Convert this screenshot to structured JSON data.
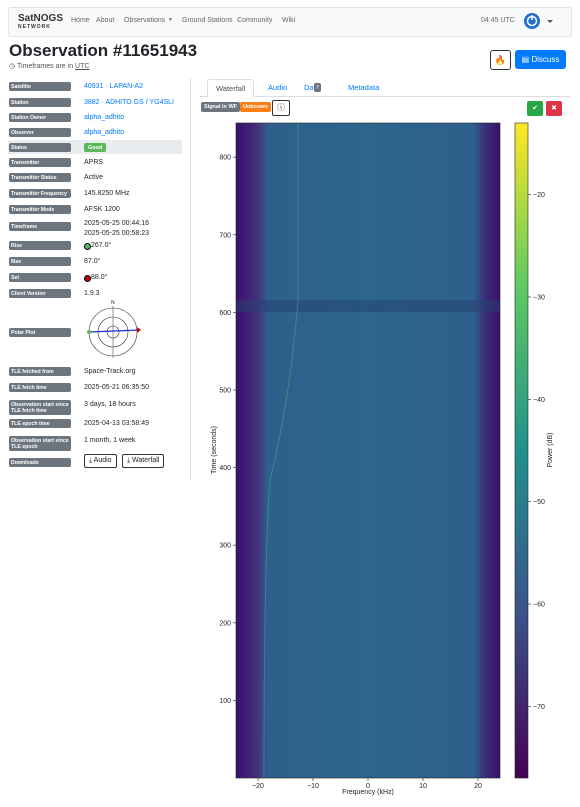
{
  "nav": {
    "brand": "SatNOGS",
    "brand_sub": "NETWORK",
    "links": [
      "Home",
      "About",
      "Observations",
      "Ground Stations",
      "Community",
      "Wiki"
    ],
    "time": "04:45 UTC"
  },
  "header": {
    "title": "Observation #11651943",
    "subtitle": "Timeframes are in",
    "utc": "UTC",
    "discuss": "Discuss"
  },
  "details": [
    {
      "label": "Satellite",
      "values": [
        "40931 · LAPAN-A2"
      ]
    },
    {
      "label": "Station",
      "values": [
        "3882 · ADHITO GS / YG4SLI"
      ]
    },
    {
      "label": "Station Owner",
      "values": [
        "alpha_adhito"
      ]
    },
    {
      "label": "Observer",
      "values": [
        "alpha_adhito"
      ]
    },
    {
      "label": "Status",
      "values": [
        "Good"
      ]
    },
    {
      "label": "Transmitter",
      "values": [
        "APRS"
      ]
    },
    {
      "label": "Transmitter Status",
      "values": [
        "Active"
      ]
    },
    {
      "label": "Transmitter Frequency",
      "values": [
        "145.8250 MHz"
      ]
    },
    {
      "label": "Transmitter Mode",
      "values": [
        "AFSK 1200"
      ]
    },
    {
      "label": "Timeframe",
      "values": [
        "2025-05-25 00:44:16",
        "2025-05-25 00:58:23"
      ]
    },
    {
      "label": "Rise",
      "values": [
        "267.0°"
      ]
    },
    {
      "label": "Max",
      "values": [
        "87.0°"
      ]
    },
    {
      "label": "Set",
      "values": [
        "88.0°"
      ]
    },
    {
      "label": "Client Version",
      "values": [
        "1.9.3"
      ]
    },
    {
      "label": "Polar Plot",
      "values": [
        "N"
      ]
    },
    {
      "label": "TLE fetched from",
      "values": [
        "Space-Track.org"
      ]
    },
    {
      "label": "TLE fetch time",
      "values": [
        "2025-05-21 06:35:50"
      ]
    },
    {
      "label": "Observation start since TLE fetch time",
      "values": [
        "3 days, 18 hours"
      ]
    },
    {
      "label": "TLE epoch time",
      "values": [
        "2025-04-13 03:58:49"
      ]
    },
    {
      "label": "Observation start since TLE epoch",
      "values": [
        "1 month, 1 week"
      ]
    },
    {
      "label": "Downloads",
      "values": [
        "Audio",
        "Waterfall"
      ]
    }
  ],
  "tabs": [
    "Waterfall",
    "Audio",
    "Data",
    "Metadata"
  ],
  "data_count": "7",
  "badges": [
    "Signal in WF",
    "Unknown"
  ],
  "chart_data": {
    "type": "heatmap",
    "xlabel": "Frequency (kHz)",
    "ylabel": "Time (seconds)",
    "xlim": [
      -24,
      24
    ],
    "ylim": [
      0,
      844
    ],
    "xticks": [
      {
        "value": -20,
        "label": "−20"
      },
      {
        "value": -10,
        "label": "−10"
      },
      0,
      10,
      20
    ],
    "yticks": [
      100,
      200,
      300,
      400,
      500,
      600,
      700,
      800
    ],
    "colorbar_label": "Power (dB)",
    "clim": [
      -77,
      -13
    ],
    "cticks": [
      {
        "value": -20,
        "label": "−20"
      },
      {
        "value": -30,
        "label": "−30"
      },
      {
        "value": -40,
        "label": "−40"
      },
      {
        "value": -50,
        "label": "−50"
      },
      {
        "value": -60,
        "label": "−60"
      },
      {
        "value": -70,
        "label": "−70"
      }
    ]
  }
}
